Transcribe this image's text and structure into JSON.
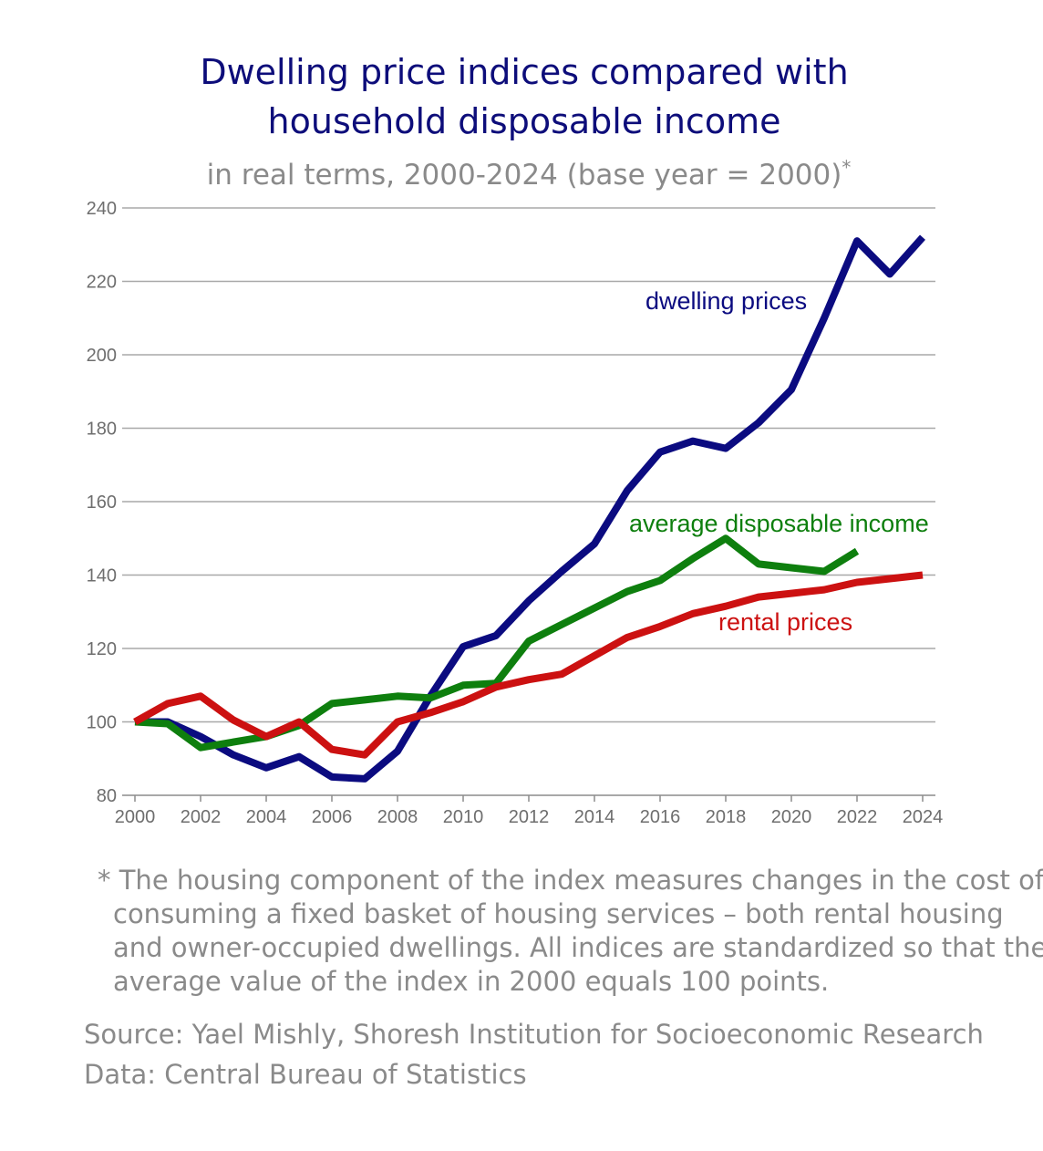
{
  "chart_data": {
    "type": "line",
    "title_lines": [
      "Dwelling price indices compared with",
      "household disposable income"
    ],
    "subtitle": "in real terms, 2000-2024 (base year = 2000)",
    "subtitle_mark": "*",
    "xlabel": "",
    "ylabel": "",
    "xlim": [
      2000,
      2024
    ],
    "ylim": [
      80,
      240
    ],
    "x_ticks": [
      2000,
      2002,
      2004,
      2006,
      2008,
      2010,
      2012,
      2014,
      2016,
      2018,
      2020,
      2022,
      2024
    ],
    "y_ticks": [
      80,
      100,
      120,
      140,
      160,
      180,
      200,
      220,
      240
    ],
    "grid": "horizontal",
    "x": [
      2000,
      2001,
      2002,
      2003,
      2004,
      2005,
      2006,
      2007,
      2008,
      2009,
      2010,
      2011,
      2012,
      2013,
      2014,
      2015,
      2016,
      2017,
      2018,
      2019,
      2020,
      2021,
      2022,
      2023,
      2024
    ],
    "series": [
      {
        "name": "dwelling prices",
        "color": "#0b0b80",
        "values": [
          100,
          100,
          96,
          91,
          87.5,
          90.5,
          85,
          84.5,
          92,
          107,
          120.5,
          123.5,
          133,
          141,
          148.5,
          163,
          173.5,
          176.5,
          174.5,
          181.5,
          190.5,
          210,
          231,
          222,
          232
        ]
      },
      {
        "name": "average disposable income",
        "color": "#0e7f0e",
        "values": [
          100,
          99.5,
          93,
          94.5,
          96,
          99,
          105,
          106,
          107,
          106.5,
          110,
          110.5,
          122,
          126.5,
          131,
          135.5,
          138.5,
          144.5,
          150,
          143,
          142,
          141,
          146.5,
          null,
          null
        ]
      },
      {
        "name": "rental prices",
        "color": "#cc1111",
        "values": [
          100,
          105,
          107,
          100.5,
          96,
          100,
          92.5,
          91,
          100,
          102.5,
          105.5,
          109.5,
          111.5,
          113,
          118,
          123,
          126,
          129.5,
          131.5,
          134,
          135,
          136,
          138,
          139,
          140
        ]
      }
    ]
  },
  "footnote": "* The housing component of the index measures changes in the cost of consuming a fixed basket of housing services – both rental housing and owner-occupied dwellings. All indices are standardized so that the average value of the index in 2000 equals 100 points.",
  "source": "Source: Yael Mishly, Shoresh Institution for Socioeconomic Research",
  "data_credit": "Data: Central Bureau of Statistics"
}
